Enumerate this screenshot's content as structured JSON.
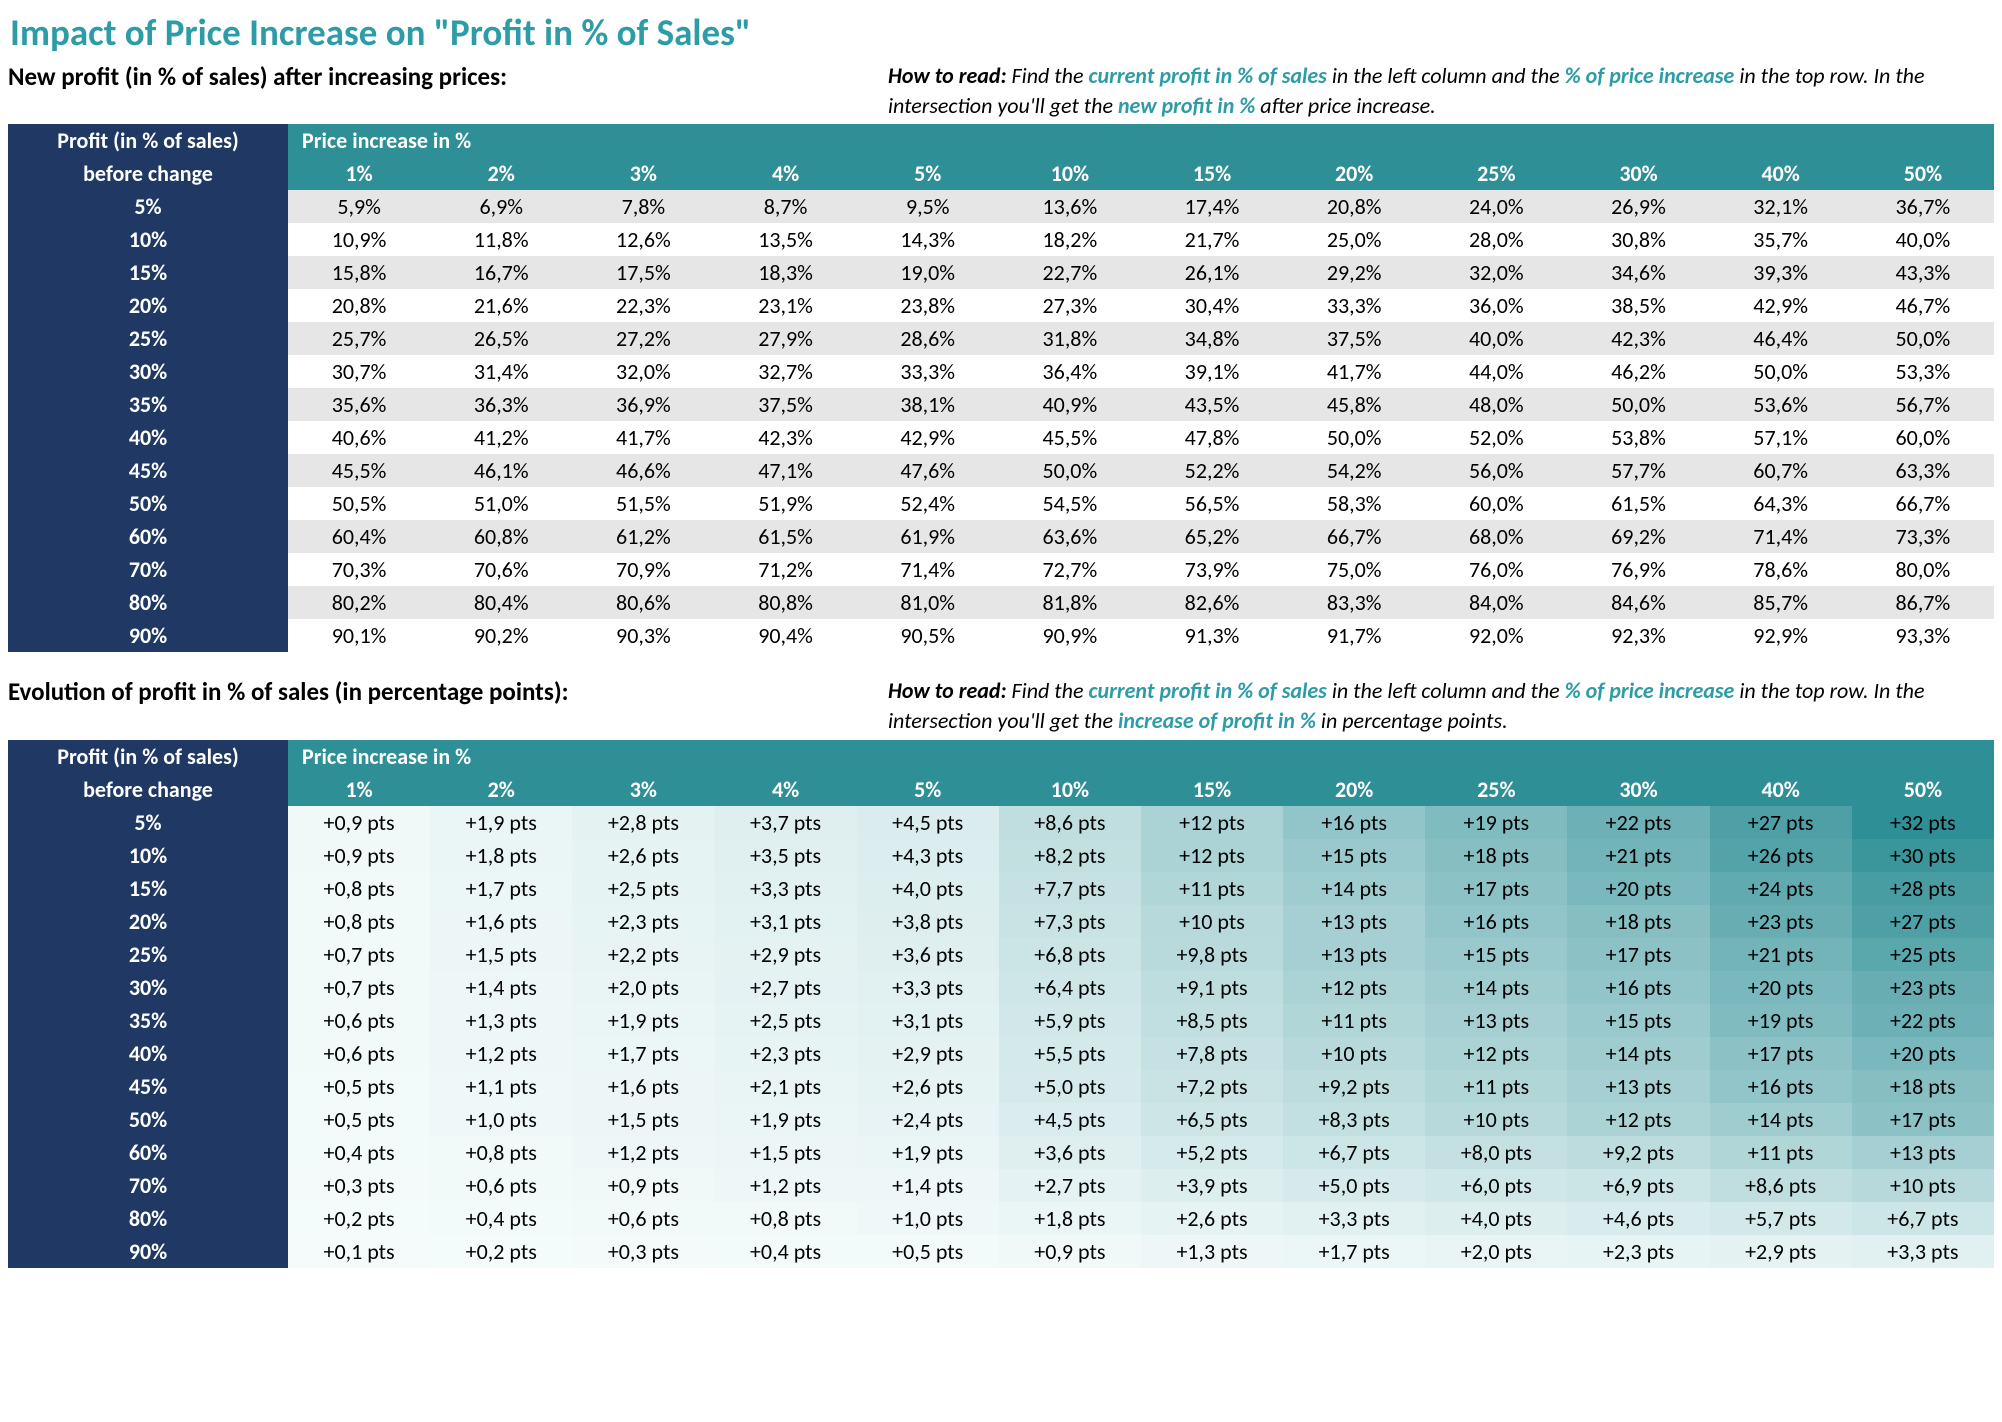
{
  "title": "Impact of Price Increase on \"Profit in % of Sales\"",
  "colors": {
    "teal": "#2e9ca6",
    "tealHeader": "#2f8f96",
    "navy": "#1f3864",
    "rowOdd": "#e6e6e6",
    "rowEven": "#ffffff",
    "heatMin": "#f5fbfb",
    "heatMax": "#2f8f96"
  },
  "table1": {
    "subtitle": "New profit (in % of sales) after increasing prices:",
    "howto": {
      "lead": "How to read:",
      "parts": [
        " Find the ",
        {
          "em": "current profit in % of sales"
        },
        " in the left column and the ",
        {
          "em": "% of price increase"
        },
        " in the top row. In the intersection you'll get the ",
        {
          "em": "new profit in %"
        },
        " after price increase."
      ]
    },
    "cornerTop": "Profit (in % of sales)",
    "cornerBot": "before change",
    "headerLabel": "Price increase in %",
    "cols": [
      "1%",
      "2%",
      "3%",
      "4%",
      "5%",
      "10%",
      "15%",
      "20%",
      "25%",
      "30%",
      "40%",
      "50%"
    ],
    "rows": [
      "5%",
      "10%",
      "15%",
      "20%",
      "25%",
      "30%",
      "35%",
      "40%",
      "45%",
      "50%",
      "60%",
      "70%",
      "80%",
      "90%"
    ],
    "cells": [
      [
        "5,9%",
        "6,9%",
        "7,8%",
        "8,7%",
        "9,5%",
        "13,6%",
        "17,4%",
        "20,8%",
        "24,0%",
        "26,9%",
        "32,1%",
        "36,7%"
      ],
      [
        "10,9%",
        "11,8%",
        "12,6%",
        "13,5%",
        "14,3%",
        "18,2%",
        "21,7%",
        "25,0%",
        "28,0%",
        "30,8%",
        "35,7%",
        "40,0%"
      ],
      [
        "15,8%",
        "16,7%",
        "17,5%",
        "18,3%",
        "19,0%",
        "22,7%",
        "26,1%",
        "29,2%",
        "32,0%",
        "34,6%",
        "39,3%",
        "43,3%"
      ],
      [
        "20,8%",
        "21,6%",
        "22,3%",
        "23,1%",
        "23,8%",
        "27,3%",
        "30,4%",
        "33,3%",
        "36,0%",
        "38,5%",
        "42,9%",
        "46,7%"
      ],
      [
        "25,7%",
        "26,5%",
        "27,2%",
        "27,9%",
        "28,6%",
        "31,8%",
        "34,8%",
        "37,5%",
        "40,0%",
        "42,3%",
        "46,4%",
        "50,0%"
      ],
      [
        "30,7%",
        "31,4%",
        "32,0%",
        "32,7%",
        "33,3%",
        "36,4%",
        "39,1%",
        "41,7%",
        "44,0%",
        "46,2%",
        "50,0%",
        "53,3%"
      ],
      [
        "35,6%",
        "36,3%",
        "36,9%",
        "37,5%",
        "38,1%",
        "40,9%",
        "43,5%",
        "45,8%",
        "48,0%",
        "50,0%",
        "53,6%",
        "56,7%"
      ],
      [
        "40,6%",
        "41,2%",
        "41,7%",
        "42,3%",
        "42,9%",
        "45,5%",
        "47,8%",
        "50,0%",
        "52,0%",
        "53,8%",
        "57,1%",
        "60,0%"
      ],
      [
        "45,5%",
        "46,1%",
        "46,6%",
        "47,1%",
        "47,6%",
        "50,0%",
        "52,2%",
        "54,2%",
        "56,0%",
        "57,7%",
        "60,7%",
        "63,3%"
      ],
      [
        "50,5%",
        "51,0%",
        "51,5%",
        "51,9%",
        "52,4%",
        "54,5%",
        "56,5%",
        "58,3%",
        "60,0%",
        "61,5%",
        "64,3%",
        "66,7%"
      ],
      [
        "60,4%",
        "60,8%",
        "61,2%",
        "61,5%",
        "61,9%",
        "63,6%",
        "65,2%",
        "66,7%",
        "68,0%",
        "69,2%",
        "71,4%",
        "73,3%"
      ],
      [
        "70,3%",
        "70,6%",
        "70,9%",
        "71,2%",
        "71,4%",
        "72,7%",
        "73,9%",
        "75,0%",
        "76,0%",
        "76,9%",
        "78,6%",
        "80,0%"
      ],
      [
        "80,2%",
        "80,4%",
        "80,6%",
        "80,8%",
        "81,0%",
        "81,8%",
        "82,6%",
        "83,3%",
        "84,0%",
        "84,6%",
        "85,7%",
        "86,7%"
      ],
      [
        "90,1%",
        "90,2%",
        "90,3%",
        "90,4%",
        "90,5%",
        "90,9%",
        "91,3%",
        "91,7%",
        "92,0%",
        "92,3%",
        "92,9%",
        "93,3%"
      ]
    ]
  },
  "table2": {
    "subtitle": "Evolution of profit in % of sales (in percentage points):",
    "howto": {
      "lead": "How to read:",
      "parts": [
        " Find the ",
        {
          "em": "current profit in % of sales"
        },
        " in the left column and the ",
        {
          "em": "% of price increase"
        },
        " in the top row. In the intersection you'll get the ",
        {
          "em": "increase of profit in %"
        },
        " in percentage points."
      ]
    },
    "cornerTop": "Profit (in % of sales)",
    "cornerBot": "before change",
    "headerLabel": "Price increase in %",
    "cols": [
      "1%",
      "2%",
      "3%",
      "4%",
      "5%",
      "10%",
      "15%",
      "20%",
      "25%",
      "30%",
      "40%",
      "50%"
    ],
    "rows": [
      "5%",
      "10%",
      "15%",
      "20%",
      "25%",
      "30%",
      "35%",
      "40%",
      "45%",
      "50%",
      "60%",
      "70%",
      "80%",
      "90%"
    ],
    "heatmap": {
      "min": 0.1,
      "max": 32
    },
    "cells": [
      [
        {
          "v": "+0,9 pts",
          "n": 0.9
        },
        {
          "v": "+1,9 pts",
          "n": 1.9
        },
        {
          "v": "+2,8 pts",
          "n": 2.8
        },
        {
          "v": "+3,7 pts",
          "n": 3.7
        },
        {
          "v": "+4,5 pts",
          "n": 4.5
        },
        {
          "v": "+8,6 pts",
          "n": 8.6
        },
        {
          "v": "+12 pts",
          "n": 12
        },
        {
          "v": "+16 pts",
          "n": 16
        },
        {
          "v": "+19 pts",
          "n": 19
        },
        {
          "v": "+22 pts",
          "n": 22
        },
        {
          "v": "+27 pts",
          "n": 27
        },
        {
          "v": "+32 pts",
          "n": 32
        }
      ],
      [
        {
          "v": "+0,9 pts",
          "n": 0.9
        },
        {
          "v": "+1,8 pts",
          "n": 1.8
        },
        {
          "v": "+2,6 pts",
          "n": 2.6
        },
        {
          "v": "+3,5 pts",
          "n": 3.5
        },
        {
          "v": "+4,3 pts",
          "n": 4.3
        },
        {
          "v": "+8,2 pts",
          "n": 8.2
        },
        {
          "v": "+12 pts",
          "n": 12
        },
        {
          "v": "+15 pts",
          "n": 15
        },
        {
          "v": "+18 pts",
          "n": 18
        },
        {
          "v": "+21 pts",
          "n": 21
        },
        {
          "v": "+26 pts",
          "n": 26
        },
        {
          "v": "+30 pts",
          "n": 30
        }
      ],
      [
        {
          "v": "+0,8 pts",
          "n": 0.8
        },
        {
          "v": "+1,7 pts",
          "n": 1.7
        },
        {
          "v": "+2,5 pts",
          "n": 2.5
        },
        {
          "v": "+3,3 pts",
          "n": 3.3
        },
        {
          "v": "+4,0 pts",
          "n": 4.0
        },
        {
          "v": "+7,7 pts",
          "n": 7.7
        },
        {
          "v": "+11 pts",
          "n": 11
        },
        {
          "v": "+14 pts",
          "n": 14
        },
        {
          "v": "+17 pts",
          "n": 17
        },
        {
          "v": "+20 pts",
          "n": 20
        },
        {
          "v": "+24 pts",
          "n": 24
        },
        {
          "v": "+28 pts",
          "n": 28
        }
      ],
      [
        {
          "v": "+0,8 pts",
          "n": 0.8
        },
        {
          "v": "+1,6 pts",
          "n": 1.6
        },
        {
          "v": "+2,3 pts",
          "n": 2.3
        },
        {
          "v": "+3,1 pts",
          "n": 3.1
        },
        {
          "v": "+3,8 pts",
          "n": 3.8
        },
        {
          "v": "+7,3 pts",
          "n": 7.3
        },
        {
          "v": "+10 pts",
          "n": 10
        },
        {
          "v": "+13 pts",
          "n": 13
        },
        {
          "v": "+16 pts",
          "n": 16
        },
        {
          "v": "+18 pts",
          "n": 18
        },
        {
          "v": "+23 pts",
          "n": 23
        },
        {
          "v": "+27 pts",
          "n": 27
        }
      ],
      [
        {
          "v": "+0,7 pts",
          "n": 0.7
        },
        {
          "v": "+1,5 pts",
          "n": 1.5
        },
        {
          "v": "+2,2 pts",
          "n": 2.2
        },
        {
          "v": "+2,9 pts",
          "n": 2.9
        },
        {
          "v": "+3,6 pts",
          "n": 3.6
        },
        {
          "v": "+6,8 pts",
          "n": 6.8
        },
        {
          "v": "+9,8 pts",
          "n": 9.8
        },
        {
          "v": "+13 pts",
          "n": 13
        },
        {
          "v": "+15 pts",
          "n": 15
        },
        {
          "v": "+17 pts",
          "n": 17
        },
        {
          "v": "+21 pts",
          "n": 21
        },
        {
          "v": "+25 pts",
          "n": 25
        }
      ],
      [
        {
          "v": "+0,7 pts",
          "n": 0.7
        },
        {
          "v": "+1,4 pts",
          "n": 1.4
        },
        {
          "v": "+2,0 pts",
          "n": 2.0
        },
        {
          "v": "+2,7 pts",
          "n": 2.7
        },
        {
          "v": "+3,3 pts",
          "n": 3.3
        },
        {
          "v": "+6,4 pts",
          "n": 6.4
        },
        {
          "v": "+9,1 pts",
          "n": 9.1
        },
        {
          "v": "+12 pts",
          "n": 12
        },
        {
          "v": "+14 pts",
          "n": 14
        },
        {
          "v": "+16 pts",
          "n": 16
        },
        {
          "v": "+20 pts",
          "n": 20
        },
        {
          "v": "+23 pts",
          "n": 23
        }
      ],
      [
        {
          "v": "+0,6 pts",
          "n": 0.6
        },
        {
          "v": "+1,3 pts",
          "n": 1.3
        },
        {
          "v": "+1,9 pts",
          "n": 1.9
        },
        {
          "v": "+2,5 pts",
          "n": 2.5
        },
        {
          "v": "+3,1 pts",
          "n": 3.1
        },
        {
          "v": "+5,9 pts",
          "n": 5.9
        },
        {
          "v": "+8,5 pts",
          "n": 8.5
        },
        {
          "v": "+11 pts",
          "n": 11
        },
        {
          "v": "+13 pts",
          "n": 13
        },
        {
          "v": "+15 pts",
          "n": 15
        },
        {
          "v": "+19 pts",
          "n": 19
        },
        {
          "v": "+22 pts",
          "n": 22
        }
      ],
      [
        {
          "v": "+0,6 pts",
          "n": 0.6
        },
        {
          "v": "+1,2 pts",
          "n": 1.2
        },
        {
          "v": "+1,7 pts",
          "n": 1.7
        },
        {
          "v": "+2,3 pts",
          "n": 2.3
        },
        {
          "v": "+2,9 pts",
          "n": 2.9
        },
        {
          "v": "+5,5 pts",
          "n": 5.5
        },
        {
          "v": "+7,8 pts",
          "n": 7.8
        },
        {
          "v": "+10 pts",
          "n": 10
        },
        {
          "v": "+12 pts",
          "n": 12
        },
        {
          "v": "+14 pts",
          "n": 14
        },
        {
          "v": "+17 pts",
          "n": 17
        },
        {
          "v": "+20 pts",
          "n": 20
        }
      ],
      [
        {
          "v": "+0,5 pts",
          "n": 0.5
        },
        {
          "v": "+1,1 pts",
          "n": 1.1
        },
        {
          "v": "+1,6 pts",
          "n": 1.6
        },
        {
          "v": "+2,1 pts",
          "n": 2.1
        },
        {
          "v": "+2,6 pts",
          "n": 2.6
        },
        {
          "v": "+5,0 pts",
          "n": 5.0
        },
        {
          "v": "+7,2 pts",
          "n": 7.2
        },
        {
          "v": "+9,2 pts",
          "n": 9.2
        },
        {
          "v": "+11 pts",
          "n": 11
        },
        {
          "v": "+13 pts",
          "n": 13
        },
        {
          "v": "+16 pts",
          "n": 16
        },
        {
          "v": "+18 pts",
          "n": 18
        }
      ],
      [
        {
          "v": "+0,5 pts",
          "n": 0.5
        },
        {
          "v": "+1,0 pts",
          "n": 1.0
        },
        {
          "v": "+1,5 pts",
          "n": 1.5
        },
        {
          "v": "+1,9 pts",
          "n": 1.9
        },
        {
          "v": "+2,4 pts",
          "n": 2.4
        },
        {
          "v": "+4,5 pts",
          "n": 4.5
        },
        {
          "v": "+6,5 pts",
          "n": 6.5
        },
        {
          "v": "+8,3 pts",
          "n": 8.3
        },
        {
          "v": "+10 pts",
          "n": 10
        },
        {
          "v": "+12 pts",
          "n": 12
        },
        {
          "v": "+14 pts",
          "n": 14
        },
        {
          "v": "+17 pts",
          "n": 17
        }
      ],
      [
        {
          "v": "+0,4 pts",
          "n": 0.4
        },
        {
          "v": "+0,8 pts",
          "n": 0.8
        },
        {
          "v": "+1,2 pts",
          "n": 1.2
        },
        {
          "v": "+1,5 pts",
          "n": 1.5
        },
        {
          "v": "+1,9 pts",
          "n": 1.9
        },
        {
          "v": "+3,6 pts",
          "n": 3.6
        },
        {
          "v": "+5,2 pts",
          "n": 5.2
        },
        {
          "v": "+6,7 pts",
          "n": 6.7
        },
        {
          "v": "+8,0 pts",
          "n": 8.0
        },
        {
          "v": "+9,2 pts",
          "n": 9.2
        },
        {
          "v": "+11 pts",
          "n": 11
        },
        {
          "v": "+13 pts",
          "n": 13
        }
      ],
      [
        {
          "v": "+0,3 pts",
          "n": 0.3
        },
        {
          "v": "+0,6 pts",
          "n": 0.6
        },
        {
          "v": "+0,9 pts",
          "n": 0.9
        },
        {
          "v": "+1,2 pts",
          "n": 1.2
        },
        {
          "v": "+1,4 pts",
          "n": 1.4
        },
        {
          "v": "+2,7 pts",
          "n": 2.7
        },
        {
          "v": "+3,9 pts",
          "n": 3.9
        },
        {
          "v": "+5,0 pts",
          "n": 5.0
        },
        {
          "v": "+6,0 pts",
          "n": 6.0
        },
        {
          "v": "+6,9 pts",
          "n": 6.9
        },
        {
          "v": "+8,6 pts",
          "n": 8.6
        },
        {
          "v": "+10 pts",
          "n": 10
        }
      ],
      [
        {
          "v": "+0,2 pts",
          "n": 0.2
        },
        {
          "v": "+0,4 pts",
          "n": 0.4
        },
        {
          "v": "+0,6 pts",
          "n": 0.6
        },
        {
          "v": "+0,8 pts",
          "n": 0.8
        },
        {
          "v": "+1,0 pts",
          "n": 1.0
        },
        {
          "v": "+1,8 pts",
          "n": 1.8
        },
        {
          "v": "+2,6 pts",
          "n": 2.6
        },
        {
          "v": "+3,3 pts",
          "n": 3.3
        },
        {
          "v": "+4,0 pts",
          "n": 4.0
        },
        {
          "v": "+4,6 pts",
          "n": 4.6
        },
        {
          "v": "+5,7 pts",
          "n": 5.7
        },
        {
          "v": "+6,7 pts",
          "n": 6.7
        }
      ],
      [
        {
          "v": "+0,1 pts",
          "n": 0.1
        },
        {
          "v": "+0,2 pts",
          "n": 0.2
        },
        {
          "v": "+0,3 pts",
          "n": 0.3
        },
        {
          "v": "+0,4 pts",
          "n": 0.4
        },
        {
          "v": "+0,5 pts",
          "n": 0.5
        },
        {
          "v": "+0,9 pts",
          "n": 0.9
        },
        {
          "v": "+1,3 pts",
          "n": 1.3
        },
        {
          "v": "+1,7 pts",
          "n": 1.7
        },
        {
          "v": "+2,0 pts",
          "n": 2.0
        },
        {
          "v": "+2,3 pts",
          "n": 2.3
        },
        {
          "v": "+2,9 pts",
          "n": 2.9
        },
        {
          "v": "+3,3 pts",
          "n": 3.3
        }
      ]
    ]
  }
}
